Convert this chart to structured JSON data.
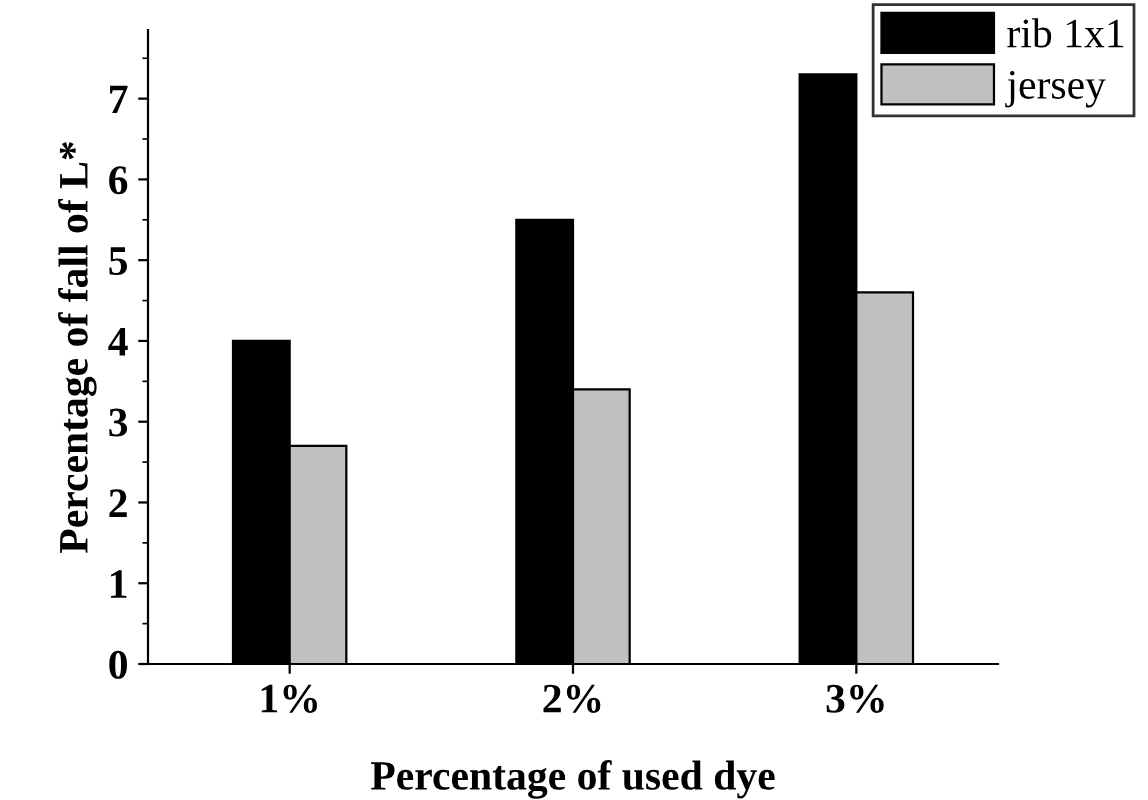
{
  "chart_data": {
    "type": "bar",
    "xlabel": "Percentage of used dye",
    "ylabel": "Percentage of fall of L*",
    "categories": [
      "1%",
      "2%",
      "3%"
    ],
    "series": [
      {
        "name": "rib 1x1",
        "color": "#000000",
        "values": [
          4.0,
          5.5,
          7.3
        ]
      },
      {
        "name": "jersey",
        "color": "#c0c0c0",
        "values": [
          2.7,
          3.4,
          4.6
        ]
      }
    ],
    "ylim": [
      0,
      7.85
    ],
    "yticks": [
      0,
      1,
      2,
      3,
      4,
      5,
      6,
      7
    ],
    "grid": false,
    "legend": "top right"
  }
}
